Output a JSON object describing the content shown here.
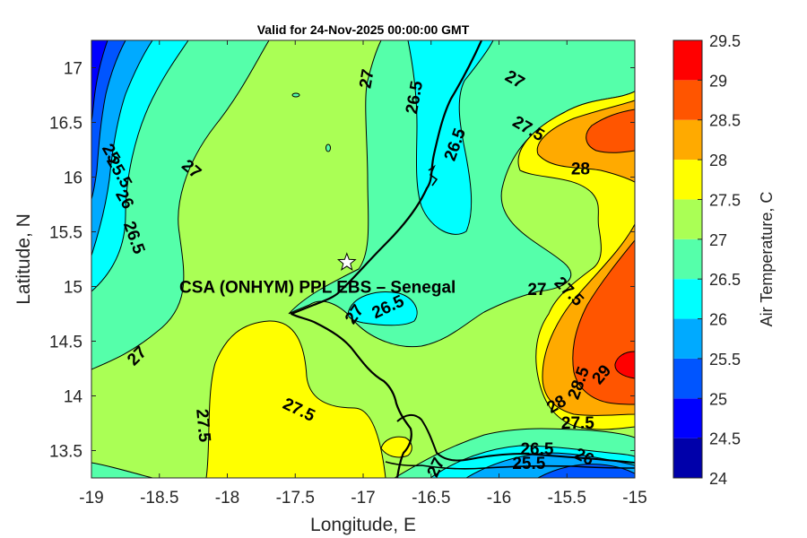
{
  "chart_data": {
    "type": "contour",
    "title": "Valid for 24-Nov-2025 00:00:00 GMT",
    "xlabel": "Longitude, E",
    "ylabel": "Latitude, N",
    "xlim": [
      -19,
      -15
    ],
    "ylim": [
      13.25,
      17.25
    ],
    "x_ticks": [
      "-19",
      "-18.5",
      "-18",
      "-17.5",
      "-17",
      "-16.5",
      "-16",
      "-15.5",
      "-15"
    ],
    "y_ticks": [
      "13.5",
      "14",
      "14.5",
      "15",
      "15.5",
      "16",
      "16.5",
      "17"
    ],
    "colorbar": {
      "label": "Air Temperature, C",
      "ticks": [
        "24",
        "24.5",
        "25",
        "25.5",
        "26",
        "26.5",
        "27",
        "27.5",
        "28",
        "28.5",
        "29",
        "29.5"
      ],
      "levels": [
        24,
        24.5,
        25,
        25.5,
        26,
        26.5,
        27,
        27.5,
        28,
        28.5,
        29,
        29.5
      ],
      "colors": [
        "#0000aa",
        "#0000ff",
        "#0055ff",
        "#00aaff",
        "#00ffff",
        "#55ffaa",
        "#aaff55",
        "#ffff00",
        "#ffaa00",
        "#ff5500",
        "#ff0000",
        "#aa0000"
      ]
    },
    "site": {
      "name": "CSA (ONHYM) PPL EBS  – Senegal",
      "lon": -17.12,
      "lat": 15.22
    },
    "contour_labels": [
      {
        "text": "27",
        "lon": -16.98,
        "lat": 16.9,
        "angle": 80
      },
      {
        "text": "26.5",
        "lon": -16.63,
        "lat": 16.73,
        "angle": 80
      },
      {
        "text": "26.5",
        "lon": -16.33,
        "lat": 16.3,
        "angle": 70
      },
      {
        "text": "27",
        "lon": -15.88,
        "lat": 16.9,
        "angle": -30
      },
      {
        "text": "27.5",
        "lon": -15.78,
        "lat": 16.45,
        "angle": -30
      },
      {
        "text": "28",
        "lon": -15.4,
        "lat": 16.08,
        "angle": 0
      },
      {
        "text": "27",
        "lon": -18.26,
        "lat": 16.08,
        "angle": -40
      },
      {
        "text": "25",
        "lon": -18.85,
        "lat": 16.22,
        "angle": -60
      },
      {
        "text": "25.5",
        "lon": -18.79,
        "lat": 16.05,
        "angle": -60
      },
      {
        "text": "26",
        "lon": -18.75,
        "lat": 15.8,
        "angle": -60
      },
      {
        "text": "26.5",
        "lon": -18.68,
        "lat": 15.45,
        "angle": -70
      },
      {
        "text": "26.5",
        "lon": -16.82,
        "lat": 14.82,
        "angle": 25
      },
      {
        "text": "27",
        "lon": -17.07,
        "lat": 14.75,
        "angle": 55
      },
      {
        "text": "27",
        "lon": -15.72,
        "lat": 14.98,
        "angle": 0
      },
      {
        "text": "27.5",
        "lon": -15.48,
        "lat": 14.96,
        "angle": -45
      },
      {
        "text": "27",
        "lon": -18.67,
        "lat": 14.37,
        "angle": 45
      },
      {
        "text": "27.5",
        "lon": -17.47,
        "lat": 13.88,
        "angle": -25
      },
      {
        "text": "27.5",
        "lon": -18.17,
        "lat": 13.73,
        "angle": -85
      },
      {
        "text": "27",
        "lon": -16.47,
        "lat": 13.35,
        "angle": 65
      },
      {
        "text": "28.5",
        "lon": -15.42,
        "lat": 14.12,
        "angle": 70
      },
      {
        "text": "29",
        "lon": -15.25,
        "lat": 14.2,
        "angle": 50
      },
      {
        "text": "28",
        "lon": -15.58,
        "lat": 13.93,
        "angle": 30
      },
      {
        "text": "27.5",
        "lon": -15.42,
        "lat": 13.76,
        "angle": 0
      },
      {
        "text": "26.5",
        "lon": -15.72,
        "lat": 13.52,
        "angle": 0
      },
      {
        "text": "26",
        "lon": -15.37,
        "lat": 13.45,
        "angle": -25
      },
      {
        "text": "25.5",
        "lon": -15.78,
        "lat": 13.39,
        "angle": 0
      }
    ]
  }
}
